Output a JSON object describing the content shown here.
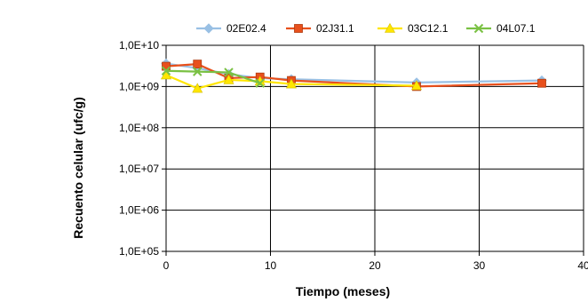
{
  "chart_data": {
    "type": "line",
    "title": "",
    "xlabel": "Tiempo (meses)",
    "ylabel": "Recuento celular (ufc/g)",
    "xlim": [
      0,
      40
    ],
    "ylim": [
      100000,
      10000000000
    ],
    "y_scale": "log",
    "x_ticks": [
      0,
      10,
      20,
      30,
      40
    ],
    "x_tick_labels": [
      "0",
      "10",
      "20",
      "30",
      "40"
    ],
    "y_ticks": [
      100000,
      1000000,
      10000000,
      100000000,
      1000000000,
      10000000000
    ],
    "y_tick_labels": [
      "1,0E+05",
      "1,0E+06",
      "1,0E+07",
      "1,0E+08",
      "1,0E+09",
      "1,0E+10"
    ],
    "grid": "horizontal major lines + vertical at x=10,20,30,40",
    "legend_position": "top",
    "series": [
      {
        "name": "02E02.4",
        "color": "#99c0e4",
        "marker": "diamond",
        "x": [
          0,
          3,
          6,
          9,
          12,
          24,
          36
        ],
        "y": [
          3600000000,
          2800000000,
          2000000000,
          1600000000,
          1500000000,
          1250000000,
          1400000000
        ]
      },
      {
        "name": "02J31.1",
        "color": "#e8501c",
        "marker": "square",
        "x": [
          0,
          3,
          6,
          9,
          12,
          24,
          36
        ],
        "y": [
          3100000000,
          3500000000,
          1600000000,
          1700000000,
          1400000000,
          1000000000,
          1200000000
        ]
      },
      {
        "name": "03C12.1",
        "color": "#ffe600",
        "marker": "triangle",
        "x": [
          0,
          3,
          6,
          9,
          12,
          24
        ],
        "y": [
          1900000000,
          900000000,
          1450000000,
          1350000000,
          1150000000,
          1050000000
        ]
      },
      {
        "name": "04L07.1",
        "color": "#7ac143",
        "marker": "x",
        "x": [
          0,
          3,
          6,
          9
        ],
        "y": [
          2400000000,
          2300000000,
          2200000000,
          1200000000
        ]
      }
    ]
  }
}
